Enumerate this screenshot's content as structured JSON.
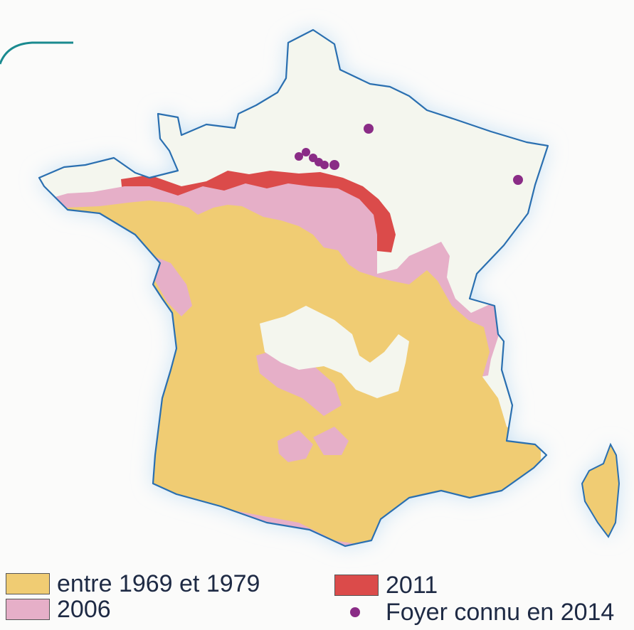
{
  "colors": {
    "page_background": "#fbfbfa",
    "glow": "#c9e2f5",
    "france_uninfested": "#f4f6ee",
    "border": "#2a6fb0",
    "period_1969_1979": "#f0cc73",
    "period_2006": "#e6afc8",
    "period_2011": "#db4b4a",
    "outbreak_2014": "#8a2c86",
    "corner_arc": "#1a8a8f"
  },
  "legend": {
    "entre_1969_1979": {
      "label": "entre 1969 et 1979",
      "color": "#f0cc73"
    },
    "year_2006": {
      "label": "2006",
      "color": "#e6afc8"
    },
    "year_2011": {
      "label": "2011",
      "color": "#db4b4a"
    },
    "foyer_2014": {
      "label": "Foyer connu en 2014",
      "color": "#8a2c86"
    }
  }
}
